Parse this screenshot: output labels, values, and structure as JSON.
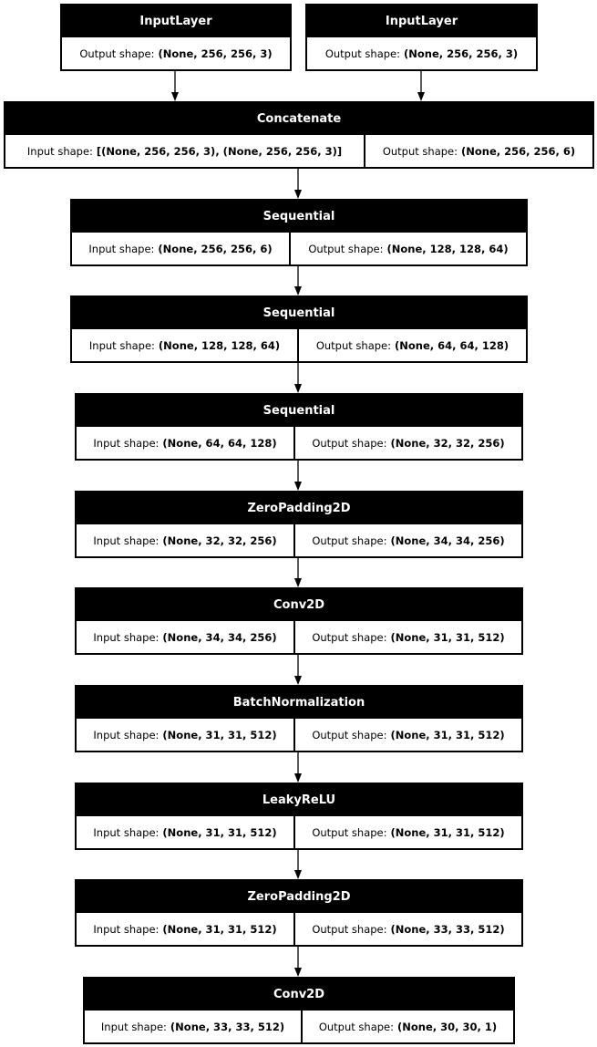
{
  "labels": {
    "input": "Input shape:",
    "output": "Output shape:"
  },
  "layers": [
    {
      "name": "InputLayer",
      "output": "(None, 256, 256, 3)"
    },
    {
      "name": "InputLayer",
      "output": "(None, 256, 256, 3)"
    },
    {
      "name": "Concatenate",
      "input": "[(None, 256, 256, 3), (None, 256, 256, 3)]",
      "output": "(None, 256, 256, 6)"
    },
    {
      "name": "Sequential",
      "input": "(None, 256, 256, 6)",
      "output": "(None, 128, 128, 64)"
    },
    {
      "name": "Sequential",
      "input": "(None, 128, 128, 64)",
      "output": "(None, 64, 64, 128)"
    },
    {
      "name": "Sequential",
      "input": "(None, 64, 64, 128)",
      "output": "(None, 32, 32, 256)"
    },
    {
      "name": "ZeroPadding2D",
      "input": "(None, 32, 32, 256)",
      "output": "(None, 34, 34, 256)"
    },
    {
      "name": "Conv2D",
      "input": "(None, 34, 34, 256)",
      "output": "(None, 31, 31, 512)"
    },
    {
      "name": "BatchNormalization",
      "input": "(None, 31, 31, 512)",
      "output": "(None, 31, 31, 512)"
    },
    {
      "name": "LeakyReLU",
      "input": "(None, 31, 31, 512)",
      "output": "(None, 31, 31, 512)"
    },
    {
      "name": "ZeroPadding2D",
      "input": "(None, 31, 31, 512)",
      "output": "(None, 33, 33, 512)"
    },
    {
      "name": "Conv2D",
      "input": "(None, 33, 33, 512)",
      "output": "(None, 30, 30, 1)"
    }
  ],
  "edges": [
    [
      0,
      2
    ],
    [
      1,
      2
    ],
    [
      2,
      3
    ],
    [
      3,
      4
    ],
    [
      4,
      5
    ],
    [
      5,
      6
    ],
    [
      6,
      7
    ],
    [
      7,
      8
    ],
    [
      8,
      9
    ],
    [
      9,
      10
    ],
    [
      10,
      11
    ]
  ]
}
